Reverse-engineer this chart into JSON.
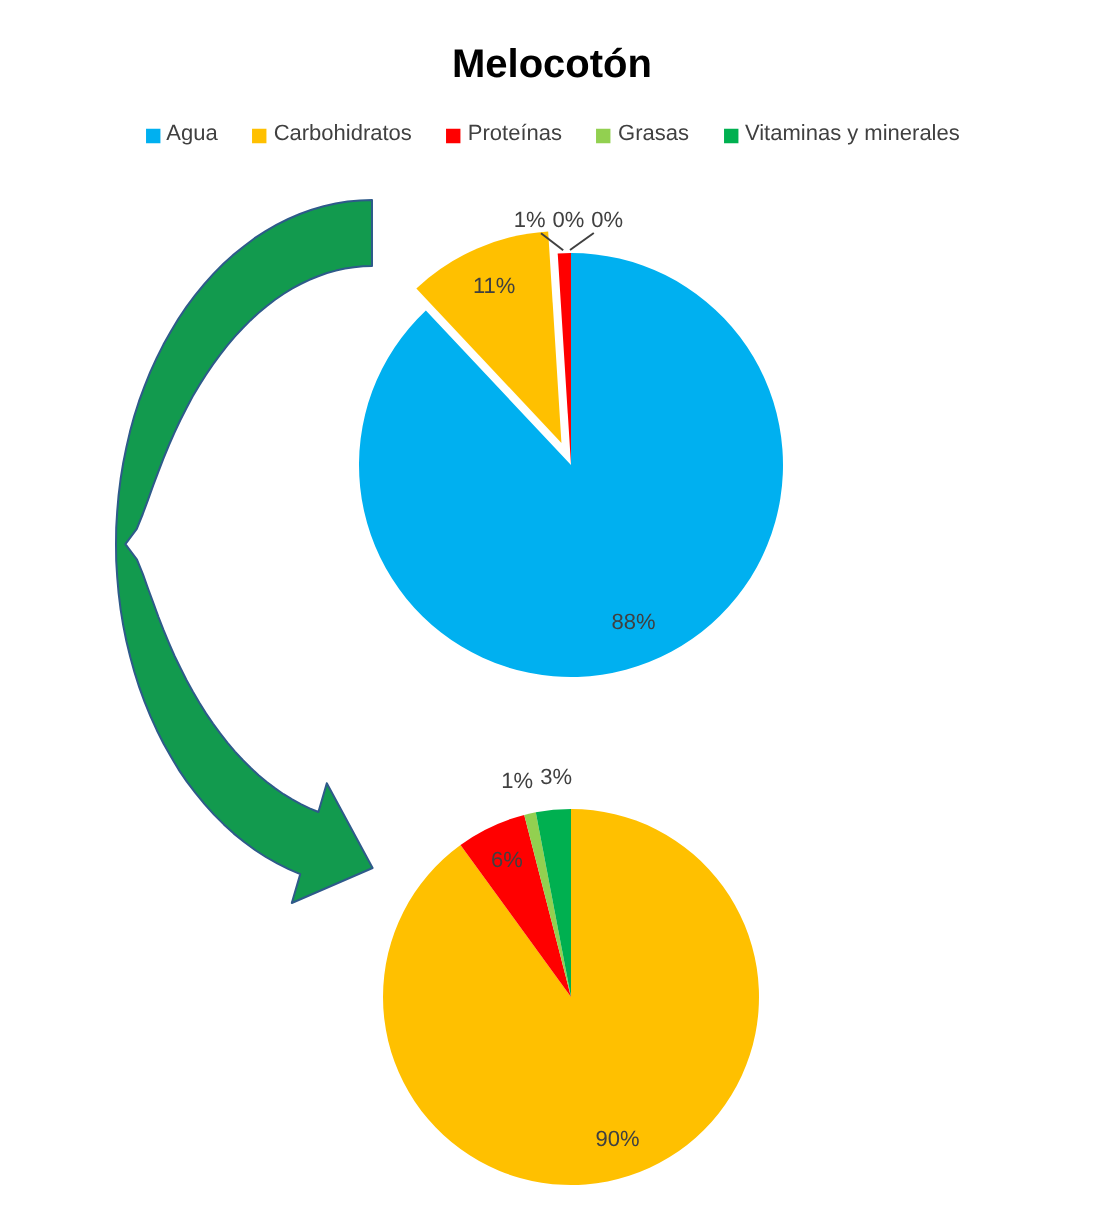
{
  "chart_data": [
    {
      "type": "pie",
      "title": "Melocotón",
      "categories": [
        "Agua",
        "Carbohidratos",
        "Proteínas",
        "Grasas",
        "Vitaminas y minerales"
      ],
      "values": [
        88,
        11,
        1,
        0,
        0
      ],
      "colors": [
        "#00b0f0",
        "#ffc000",
        "#ff0000",
        "#92d050",
        "#00b050"
      ],
      "value_labels": [
        "88%",
        "11%",
        "1%",
        "0%",
        "0%"
      ],
      "legend": "top"
    },
    {
      "type": "pie",
      "categories": [
        null,
        null,
        null,
        null
      ],
      "values": [
        90,
        6,
        1,
        3
      ],
      "colors": [
        "#ffc000",
        "#ff0000",
        "#92d050",
        "#00b050"
      ],
      "value_labels": [
        "90%",
        "6%",
        "1%",
        "3%"
      ]
    }
  ]
}
